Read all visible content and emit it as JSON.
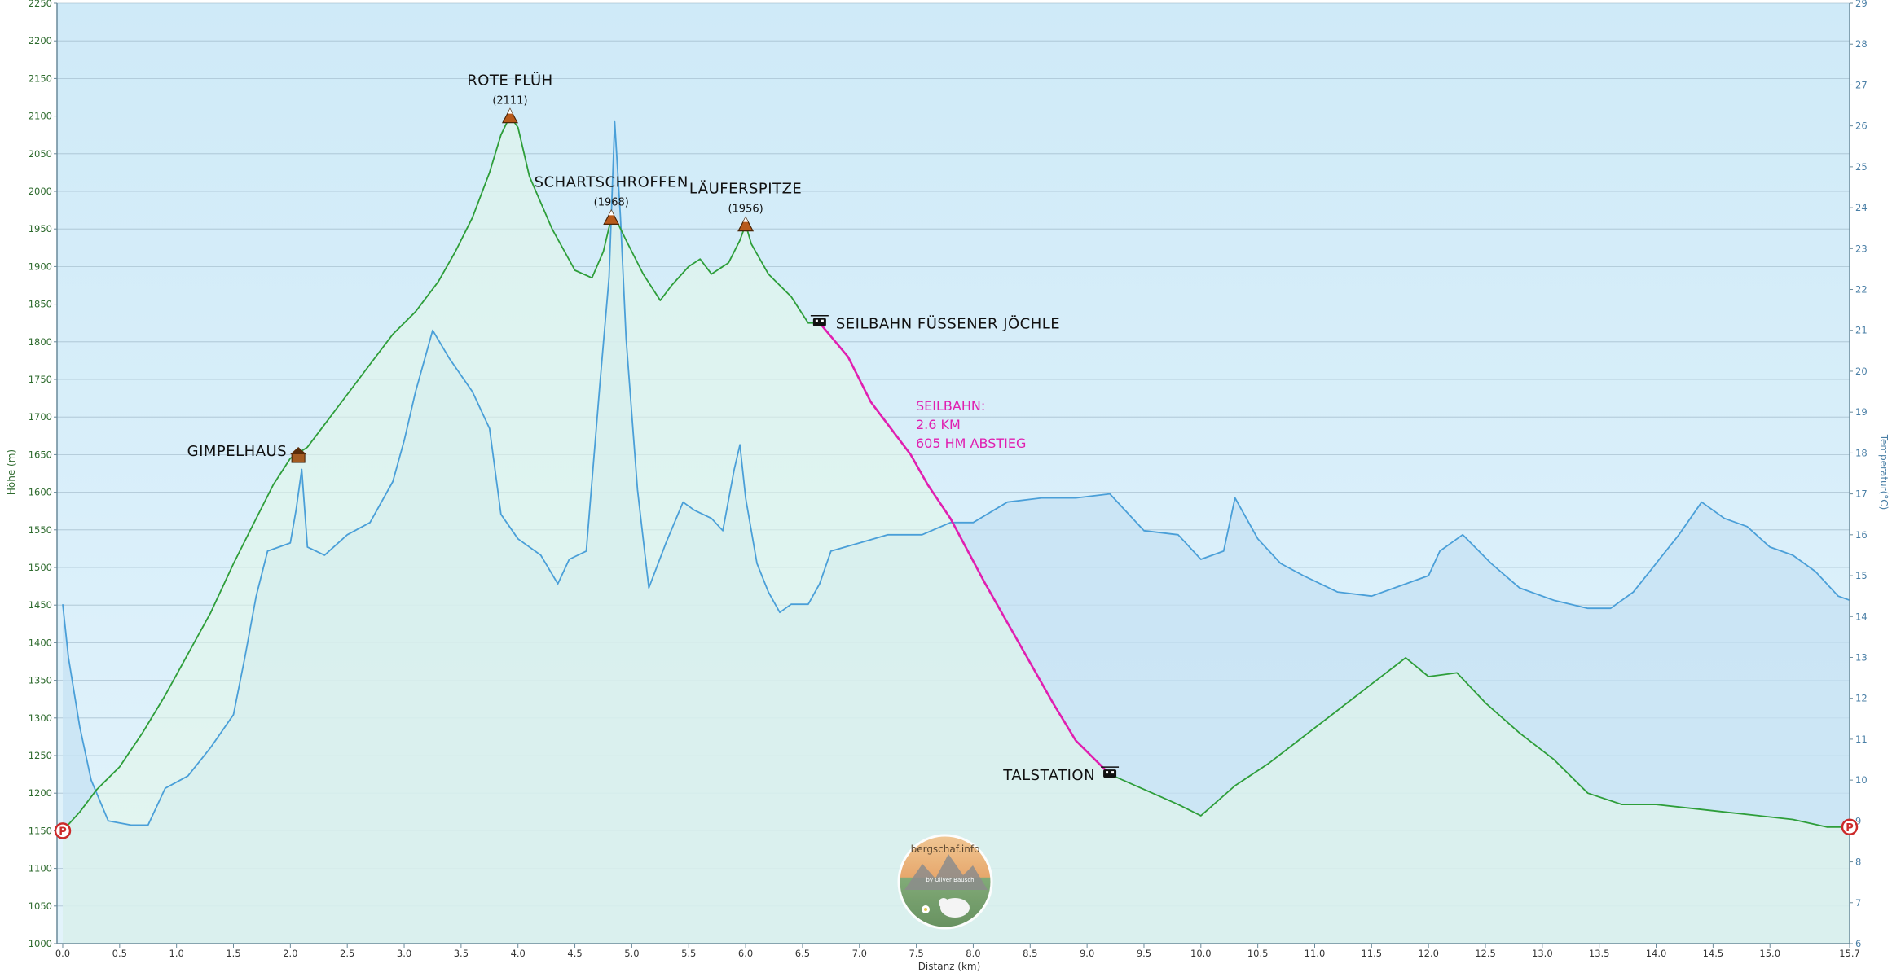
{
  "chart_data": {
    "type": "area",
    "title": "",
    "xlabel": "Distanz  (km)",
    "ylabel": "Höhe (m)",
    "y2label": "Temperatur(°C)",
    "xlim": [
      -0.05,
      15.7
    ],
    "ylim": [
      1000,
      2250
    ],
    "y2lim": [
      6,
      29
    ],
    "xticks": [
      "0.0",
      "0.5",
      "1.0",
      "1.5",
      "2.0",
      "2.5",
      "3.0",
      "3.5",
      "4.0",
      "4.5",
      "5.0",
      "5.5",
      "6.0",
      "6.5",
      "7.0",
      "7.5",
      "8.0",
      "8.5",
      "9.0",
      "9.5",
      "10.0",
      "10.5",
      "11.0",
      "11.5",
      "12.0",
      "12.5",
      "13.0",
      "13.5",
      "14.0",
      "14.5",
      "15.0",
      "15.7"
    ],
    "yticks": [
      "1000",
      "1050",
      "1100",
      "1150",
      "1200",
      "1250",
      "1300",
      "1350",
      "1400",
      "1450",
      "1500",
      "1550",
      "1600",
      "1650",
      "1700",
      "1750",
      "1800",
      "1850",
      "1900",
      "1950",
      "2000",
      "2050",
      "2100",
      "2150",
      "2200",
      "2250"
    ],
    "y2ticks": [
      "6",
      "7",
      "8",
      "9",
      "10",
      "11",
      "12",
      "13",
      "14",
      "15",
      "16",
      "17",
      "18",
      "19",
      "20",
      "21",
      "22",
      "23",
      "24",
      "25",
      "26",
      "27",
      "28",
      "29"
    ],
    "colors": {
      "elevation": "#2e9e3a",
      "elevation_fill": "#e2f6e9",
      "temperature": "#4a9fd8",
      "temperature_fill": "#c6e1f3",
      "cable": "#e01fb0",
      "background": "#d2ecf8",
      "grid": "#9fb8c8"
    },
    "series": [
      {
        "name": "Höhe (m)",
        "x": [
          0.0,
          0.15,
          0.3,
          0.5,
          0.7,
          0.9,
          1.1,
          1.3,
          1.5,
          1.7,
          1.85,
          2.0,
          2.15,
          2.3,
          2.5,
          2.7,
          2.9,
          3.1,
          3.3,
          3.45,
          3.6,
          3.75,
          3.85,
          3.93,
          4.0,
          4.1,
          4.3,
          4.5,
          4.65,
          4.75,
          4.82,
          4.87,
          4.95,
          5.1,
          5.25,
          5.35,
          5.5,
          5.6,
          5.7,
          5.85,
          5.95,
          6.0,
          6.05,
          6.2,
          6.4,
          6.55,
          6.65
        ],
        "y": [
          1150,
          1175,
          1205,
          1235,
          1280,
          1330,
          1385,
          1440,
          1505,
          1565,
          1610,
          1645,
          1660,
          1690,
          1730,
          1770,
          1810,
          1840,
          1880,
          1920,
          1965,
          2025,
          2075,
          2100,
          2085,
          2020,
          1950,
          1895,
          1885,
          1920,
          1965,
          1960,
          1935,
          1890,
          1855,
          1875,
          1900,
          1910,
          1890,
          1905,
          1935,
          1956,
          1930,
          1890,
          1860,
          1825,
          1825
        ]
      },
      {
        "name": "Seilbahn",
        "x": [
          6.65,
          6.9,
          7.1,
          7.3,
          7.45,
          7.6,
          7.8,
          8.1,
          8.4,
          8.7,
          8.9,
          9.1,
          9.2
        ],
        "y": [
          1825,
          1780,
          1720,
          1680,
          1650,
          1610,
          1565,
          1480,
          1400,
          1320,
          1270,
          1240,
          1225
        ]
      },
      {
        "name": "Höhe (m) Abstieg",
        "x": [
          9.2,
          9.5,
          9.8,
          10.0,
          10.3,
          10.6,
          10.9,
          11.2,
          11.5,
          11.8,
          12.0,
          12.25,
          12.5,
          12.8,
          13.1,
          13.4,
          13.7,
          14.0,
          14.3,
          14.6,
          14.9,
          15.2,
          15.5,
          15.7
        ],
        "y": [
          1225,
          1205,
          1185,
          1170,
          1210,
          1240,
          1275,
          1310,
          1345,
          1380,
          1355,
          1360,
          1320,
          1280,
          1245,
          1200,
          1185,
          1185,
          1180,
          1175,
          1170,
          1165,
          1155,
          1155
        ]
      },
      {
        "name": "Temperatur(°C)",
        "x": [
          0.0,
          0.05,
          0.15,
          0.25,
          0.4,
          0.6,
          0.75,
          0.9,
          1.1,
          1.3,
          1.5,
          1.6,
          1.7,
          1.8,
          2.0,
          2.05,
          2.1,
          2.15,
          2.3,
          2.5,
          2.7,
          2.9,
          3.0,
          3.1,
          3.25,
          3.4,
          3.6,
          3.75,
          3.85,
          4.0,
          4.2,
          4.35,
          4.45,
          4.6,
          4.72,
          4.8,
          4.85,
          4.9,
          4.95,
          5.05,
          5.15,
          5.3,
          5.45,
          5.55,
          5.7,
          5.8,
          5.9,
          5.95,
          6.0,
          6.1,
          6.2,
          6.3,
          6.4,
          6.55,
          6.65,
          6.75,
          7.0,
          7.25,
          7.55,
          7.8,
          8.0,
          8.3,
          8.6,
          8.9,
          9.2,
          9.5,
          9.8,
          10.0,
          10.2,
          10.3,
          10.5,
          10.7,
          10.9,
          11.2,
          11.5,
          11.8,
          12.0,
          12.1,
          12.3,
          12.55,
          12.8,
          13.1,
          13.4,
          13.6,
          13.8,
          14.0,
          14.2,
          14.4,
          14.6,
          14.8,
          15.0,
          15.2,
          15.4,
          15.6,
          15.7
        ],
        "y": [
          14.3,
          13.0,
          11.3,
          10.0,
          9.0,
          8.9,
          8.9,
          9.8,
          10.1,
          10.8,
          11.6,
          13.0,
          14.5,
          15.6,
          15.8,
          16.6,
          17.6,
          15.7,
          15.5,
          16.0,
          16.3,
          17.3,
          18.3,
          19.5,
          21.0,
          20.3,
          19.5,
          18.6,
          16.5,
          15.9,
          15.5,
          14.8,
          15.4,
          15.6,
          19.7,
          22.3,
          26.1,
          23.8,
          20.8,
          17.1,
          14.7,
          15.8,
          16.8,
          16.6,
          16.4,
          16.1,
          17.6,
          18.2,
          16.9,
          15.3,
          14.6,
          14.1,
          14.3,
          14.3,
          14.8,
          15.6,
          15.8,
          16.0,
          16.0,
          16.3,
          16.3,
          16.8,
          16.9,
          16.9,
          17.0,
          16.1,
          16.0,
          15.4,
          15.6,
          16.9,
          15.9,
          15.3,
          15.0,
          14.6,
          14.5,
          14.8,
          15.0,
          15.6,
          16.0,
          15.3,
          14.7,
          14.4,
          14.2,
          14.2,
          14.6,
          15.3,
          16.0,
          16.8,
          16.4,
          16.2,
          15.7,
          15.5,
          15.1,
          14.5,
          14.4
        ]
      }
    ],
    "annotations": [
      {
        "label": "ROTE FLÜH",
        "sub": "(2111)",
        "x": 3.93,
        "y": 2100,
        "kind": "peak"
      },
      {
        "label": "SCHARTSCHROFFEN",
        "sub": "(1968)",
        "x": 4.82,
        "y": 1965,
        "kind": "peak"
      },
      {
        "label": "LÄUFERSPITZE",
        "sub": "(1956)",
        "x": 6.0,
        "y": 1956,
        "kind": "peak"
      },
      {
        "label": "GIMPELHAUS",
        "sub": "",
        "x": 2.07,
        "y": 1645,
        "kind": "hut"
      },
      {
        "label": "SEILBAHN FÜSSENER JÖCHLE",
        "sub": "",
        "x": 6.65,
        "y": 1825,
        "kind": "cable"
      },
      {
        "label": "TALSTATION",
        "sub": "",
        "x": 9.2,
        "y": 1225,
        "kind": "cable"
      },
      {
        "label": "P",
        "sub": "",
        "x": 0.0,
        "y": 1150,
        "kind": "parking"
      },
      {
        "label": "P",
        "sub": "",
        "x": 15.7,
        "y": 1155,
        "kind": "parking"
      }
    ],
    "note": [
      "SEILBAHN:",
      "2.6 KM",
      "605 HM ABSTIEG"
    ],
    "watermark": {
      "text": "bergschaf.info",
      "sub": "by Oliver Bausch"
    }
  }
}
